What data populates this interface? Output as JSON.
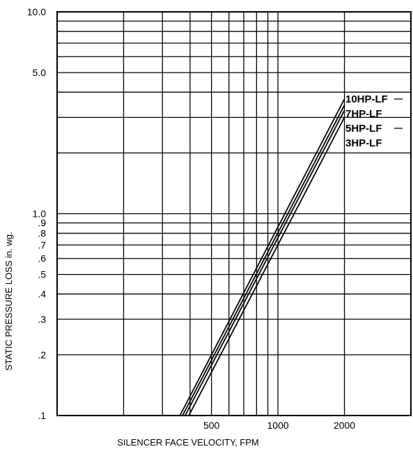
{
  "chart_data": {
    "type": "line",
    "xlabel": "SILENCER FACE VELOCITY, FPM",
    "ylabel": "STATIC PRESSURE LOSS in. wg.",
    "x_scale": "log",
    "y_scale": "log",
    "xlim": [
      100,
      4000
    ],
    "ylim": [
      0.1,
      10.0
    ],
    "grid": true,
    "x_tick_labels": [
      {
        "value": 500,
        "label": "500"
      },
      {
        "value": 1000,
        "label": "1000"
      },
      {
        "value": 2000,
        "label": "2000"
      }
    ],
    "y_tick_labels": [
      {
        "value": 0.1,
        "label": ".1"
      },
      {
        "value": 0.2,
        "label": ".2"
      },
      {
        "value": 0.3,
        "label": ".3"
      },
      {
        "value": 0.4,
        "label": ".4"
      },
      {
        "value": 0.5,
        "label": ".5"
      },
      {
        "value": 0.6,
        "label": ".6"
      },
      {
        "value": 0.7,
        "label": ".7"
      },
      {
        "value": 0.8,
        "label": ".8"
      },
      {
        "value": 0.9,
        "label": ".9"
      },
      {
        "value": 1.0,
        "label": "1.0"
      },
      {
        "value": 5.0,
        "label": "5.0"
      },
      {
        "value": 10.0,
        "label": "10.0"
      }
    ],
    "x_gridlines": [
      200,
      300,
      400,
      500,
      600,
      700,
      800,
      900,
      1000,
      2000
    ],
    "y_gridlines": [
      0.2,
      0.3,
      0.4,
      0.5,
      0.6,
      0.7,
      0.8,
      0.9,
      1.0,
      2.0,
      3.0,
      4.0,
      5.0,
      6.0,
      7.0,
      8.0,
      9.0
    ],
    "series": [
      {
        "name": "10HP-LF",
        "x": [
          360,
          2000
        ],
        "y": [
          0.1,
          3.7
        ]
      },
      {
        "name": "7HP-LF",
        "x": [
          370,
          2000
        ],
        "y": [
          0.1,
          3.45
        ]
      },
      {
        "name": "5HP-LF",
        "x": [
          380,
          2000
        ],
        "y": [
          0.1,
          3.25
        ]
      },
      {
        "name": "3HP-LF",
        "x": [
          395,
          2000
        ],
        "y": [
          0.1,
          3.0
        ]
      }
    ]
  }
}
